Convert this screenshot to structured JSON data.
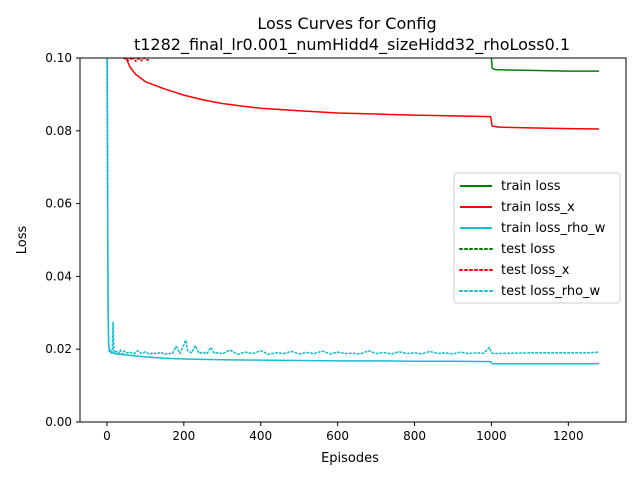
{
  "chart_data": {
    "type": "line",
    "title": "Loss Curves for Config",
    "subtitle": "t1282_final_lr0.001_numHidd4_sizeHidd32_rhoLoss0.1",
    "xlabel": "Episodes",
    "ylabel": "Loss",
    "xlim": [
      -70,
      1350
    ],
    "ylim": [
      0.0,
      0.1
    ],
    "x_ticks": [
      0,
      200,
      400,
      600,
      800,
      1000,
      1200
    ],
    "y_ticks": [
      0.0,
      0.02,
      0.04,
      0.06,
      0.08,
      0.1
    ],
    "x_tick_labels": [
      "0",
      "200",
      "400",
      "600",
      "800",
      "1000",
      "1200"
    ],
    "y_tick_labels": [
      "0.00",
      "0.02",
      "0.04",
      "0.06",
      "0.08",
      "0.10"
    ],
    "grid": false,
    "legend_position": "center-right",
    "series": [
      {
        "name": "train loss",
        "color": "#008000",
        "style": "solid",
        "x": [
          998,
          1000,
          1002,
          1010,
          1050,
          1100,
          1150,
          1200,
          1280
        ],
        "y": [
          0.1005,
          0.1,
          0.0972,
          0.0968,
          0.0967,
          0.0966,
          0.0965,
          0.0964,
          0.0964
        ]
      },
      {
        "name": "train loss_x",
        "color": "#ff0000",
        "style": "solid",
        "x": [
          50,
          60,
          75,
          100,
          150,
          200,
          250,
          300,
          350,
          400,
          500,
          600,
          700,
          800,
          900,
          998,
          1002,
          1020,
          1100,
          1200,
          1280
        ],
        "y": [
          0.1,
          0.0975,
          0.0955,
          0.0935,
          0.0915,
          0.0898,
          0.0885,
          0.0875,
          0.0868,
          0.0862,
          0.0855,
          0.0849,
          0.0846,
          0.0843,
          0.0841,
          0.0839,
          0.0813,
          0.081,
          0.0808,
          0.0806,
          0.0805
        ]
      },
      {
        "name": "train loss_rho_w",
        "color": "#17becf",
        "style": "solid",
        "x": [
          0,
          1,
          3,
          5,
          10,
          20,
          40,
          60,
          80,
          100,
          150,
          200,
          300,
          400,
          500,
          600,
          700,
          800,
          900,
          998,
          1002,
          1100,
          1200,
          1280
        ],
        "y": [
          0.1,
          0.1,
          0.03,
          0.0205,
          0.0192,
          0.0188,
          0.0185,
          0.0183,
          0.0181,
          0.0179,
          0.0175,
          0.0173,
          0.0171,
          0.017,
          0.0169,
          0.0168,
          0.0168,
          0.0167,
          0.0167,
          0.0166,
          0.016,
          0.016,
          0.016,
          0.016
        ]
      },
      {
        "name": "test loss",
        "color": "#008000",
        "style": "dotted",
        "x": [],
        "y": []
      },
      {
        "name": "test loss_x",
        "color": "#ff0000",
        "style": "dotted",
        "x": [
          45,
          50,
          55,
          60,
          65,
          70,
          75,
          80,
          85,
          90,
          95,
          100,
          105,
          110
        ],
        "y": [
          0.0998,
          0.1,
          0.0993,
          0.0999,
          0.0995,
          0.1,
          0.0991,
          0.0997,
          0.0999,
          0.0993,
          0.0998,
          0.1,
          0.0994,
          0.0997
        ]
      },
      {
        "name": "test loss_rho_w",
        "color": "#17becf",
        "style": "dotted",
        "x": [
          0,
          2,
          4,
          6,
          8,
          10,
          12,
          14,
          16,
          18,
          20,
          25,
          30,
          35,
          40,
          45,
          50,
          60,
          70,
          80,
          90,
          100,
          110,
          120,
          130,
          140,
          150,
          160,
          170,
          180,
          190,
          200,
          205,
          210,
          220,
          230,
          240,
          250,
          260,
          270,
          280,
          290,
          300,
          320,
          340,
          360,
          380,
          400,
          420,
          440,
          460,
          480,
          500,
          520,
          540,
          560,
          580,
          600,
          620,
          640,
          660,
          680,
          700,
          720,
          740,
          760,
          780,
          800,
          820,
          840,
          860,
          880,
          900,
          920,
          940,
          960,
          980,
          995,
          1000,
          1005,
          1050,
          1100,
          1150,
          1200,
          1250,
          1280
        ],
        "y": [
          0.1,
          0.05,
          0.022,
          0.0195,
          0.019,
          0.0195,
          0.0188,
          0.0192,
          0.0275,
          0.0205,
          0.019,
          0.0194,
          0.0188,
          0.0198,
          0.0186,
          0.0195,
          0.0189,
          0.0192,
          0.0187,
          0.0196,
          0.0188,
          0.0193,
          0.0186,
          0.019,
          0.0187,
          0.0192,
          0.0186,
          0.0189,
          0.0187,
          0.0208,
          0.0188,
          0.0212,
          0.0225,
          0.0195,
          0.019,
          0.021,
          0.0188,
          0.0192,
          0.0187,
          0.0205,
          0.0188,
          0.0191,
          0.0187,
          0.0198,
          0.0186,
          0.0192,
          0.0188,
          0.0196,
          0.0186,
          0.019,
          0.0188,
          0.0194,
          0.0187,
          0.0191,
          0.0188,
          0.0195,
          0.0187,
          0.0192,
          0.0188,
          0.0189,
          0.0187,
          0.0196,
          0.0188,
          0.0191,
          0.0187,
          0.0193,
          0.0188,
          0.019,
          0.0187,
          0.0194,
          0.0188,
          0.019,
          0.0187,
          0.0192,
          0.0188,
          0.019,
          0.0189,
          0.0205,
          0.019,
          0.0188,
          0.0189,
          0.019,
          0.019,
          0.019,
          0.019,
          0.0192
        ]
      }
    ]
  }
}
